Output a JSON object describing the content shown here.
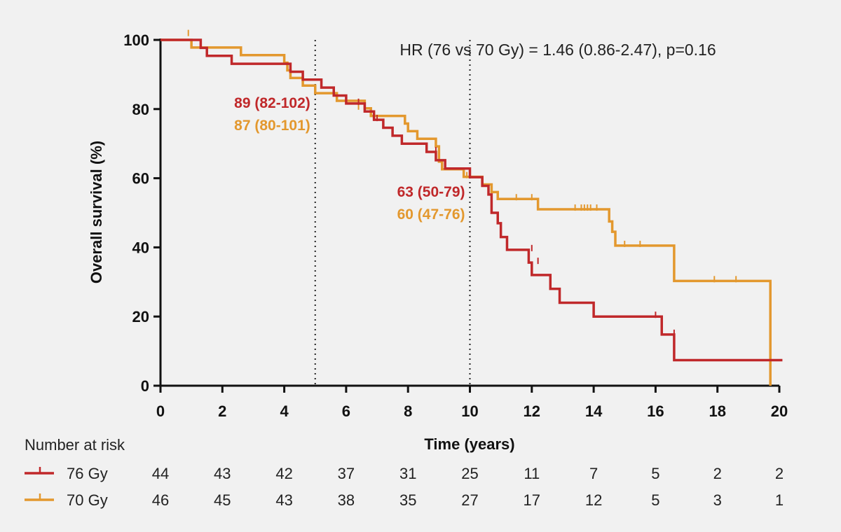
{
  "chart_data": {
    "type": "line",
    "subtype": "kaplan-meier",
    "xlabel": "Time (years)",
    "ylabel": "Overall survival (%)",
    "xlim": [
      0,
      20
    ],
    "ylim": [
      0,
      100
    ],
    "xticks": [
      0,
      2,
      4,
      6,
      8,
      10,
      12,
      14,
      16,
      18,
      20
    ],
    "yticks": [
      0,
      20,
      40,
      60,
      80,
      100
    ],
    "grid": false,
    "reference_lines_x": [
      5,
      10
    ],
    "annotation": "HR (76 vs 70 Gy) = 1.46 (0.86-2.47), p=0.16",
    "estimates": [
      {
        "x": 5,
        "series": "76 Gy",
        "text": "89 (82-102)"
      },
      {
        "x": 5,
        "series": "70 Gy",
        "text": "87 (80-101)"
      },
      {
        "x": 10,
        "series": "76 Gy",
        "text": "63 (50-79)"
      },
      {
        "x": 10,
        "series": "70 Gy",
        "text": "60 (47-76)"
      }
    ],
    "series": [
      {
        "name": "76 Gy",
        "color": "#c0282a",
        "steps": [
          [
            0,
            100
          ],
          [
            1.3,
            97.7
          ],
          [
            1.5,
            95.4
          ],
          [
            2.3,
            93.1
          ],
          [
            4.2,
            90.8
          ],
          [
            4.6,
            88.5
          ],
          [
            5.2,
            86.2
          ],
          [
            5.6,
            83.9
          ],
          [
            6.0,
            81.6
          ],
          [
            6.6,
            79.3
          ],
          [
            6.9,
            76.9
          ],
          [
            7.2,
            74.6
          ],
          [
            7.5,
            72.3
          ],
          [
            7.8,
            70.0
          ],
          [
            8.6,
            67.6
          ],
          [
            8.9,
            65.2
          ],
          [
            9.2,
            62.8
          ],
          [
            10.0,
            60.3
          ],
          [
            10.4,
            57.8
          ],
          [
            10.6,
            55.3
          ],
          [
            10.7,
            50.0
          ],
          [
            10.9,
            47.0
          ],
          [
            11.0,
            43.0
          ],
          [
            11.2,
            39.3
          ],
          [
            11.9,
            35.6
          ],
          [
            12.0,
            32.0
          ],
          [
            12.6,
            28.0
          ],
          [
            12.9,
            24.0
          ],
          [
            14.0,
            20.0
          ],
          [
            16.1,
            20.0
          ],
          [
            16.2,
            14.8
          ],
          [
            16.6,
            7.4
          ],
          [
            20.1,
            7.4
          ]
        ],
        "censored": [
          [
            6.4,
            81.6
          ],
          [
            7.0,
            76.9
          ],
          [
            8.9,
            67.6
          ],
          [
            12.0,
            39.3
          ],
          [
            12.2,
            35.6
          ],
          [
            16.0,
            20.0
          ],
          [
            16.6,
            14.8
          ]
        ]
      },
      {
        "name": "70 Gy",
        "color": "#e3982e",
        "steps": [
          [
            0,
            100
          ],
          [
            0.9,
            100
          ],
          [
            1.0,
            97.8
          ],
          [
            2.6,
            95.6
          ],
          [
            4.0,
            93.4
          ],
          [
            4.1,
            91.2
          ],
          [
            4.2,
            89.0
          ],
          [
            4.6,
            86.8
          ],
          [
            5.0,
            84.6
          ],
          [
            5.7,
            82.4
          ],
          [
            6.6,
            80.2
          ],
          [
            6.8,
            78.0
          ],
          [
            7.9,
            75.8
          ],
          [
            8.0,
            73.6
          ],
          [
            8.3,
            71.4
          ],
          [
            8.9,
            69.2
          ],
          [
            9.0,
            64.8
          ],
          [
            9.1,
            62.6
          ],
          [
            9.8,
            60.4
          ],
          [
            10.4,
            58.2
          ],
          [
            10.7,
            56.0
          ],
          [
            10.9,
            54.0
          ],
          [
            12.2,
            51.0
          ],
          [
            14.5,
            47.5
          ],
          [
            14.6,
            44.5
          ],
          [
            14.7,
            40.5
          ],
          [
            16.6,
            30.3
          ],
          [
            19.7,
            30.3
          ],
          [
            19.71,
            0
          ]
        ],
        "censored": [
          [
            0.9,
            101.5
          ],
          [
            6.4,
            80.2
          ],
          [
            9.9,
            60.4
          ],
          [
            10.4,
            58.2
          ],
          [
            11.5,
            54.0
          ],
          [
            12.0,
            54.0
          ],
          [
            13.4,
            51.0
          ],
          [
            13.6,
            51.0
          ],
          [
            13.7,
            51.0
          ],
          [
            13.8,
            51.0
          ],
          [
            13.9,
            51.0
          ],
          [
            14.1,
            51.0
          ],
          [
            15.0,
            40.5
          ],
          [
            15.5,
            40.5
          ],
          [
            17.9,
            30.3
          ],
          [
            18.6,
            30.3
          ]
        ]
      }
    ],
    "risk_table": {
      "title": "Number at risk",
      "times": [
        0,
        2,
        4,
        6,
        8,
        10,
        12,
        14,
        16,
        18,
        20
      ],
      "rows": [
        {
          "name": "76 Gy",
          "color": "#c0282a",
          "values": [
            "44",
            "43",
            "42",
            "37",
            "31",
            "25",
            "11",
            "7",
            "5",
            "2",
            "2"
          ]
        },
        {
          "name": "70 Gy",
          "color": "#e3982e",
          "values": [
            "46",
            "45",
            "43",
            "38",
            "35",
            "27",
            "17",
            "12",
            "5",
            "3",
            "1"
          ]
        }
      ]
    }
  }
}
